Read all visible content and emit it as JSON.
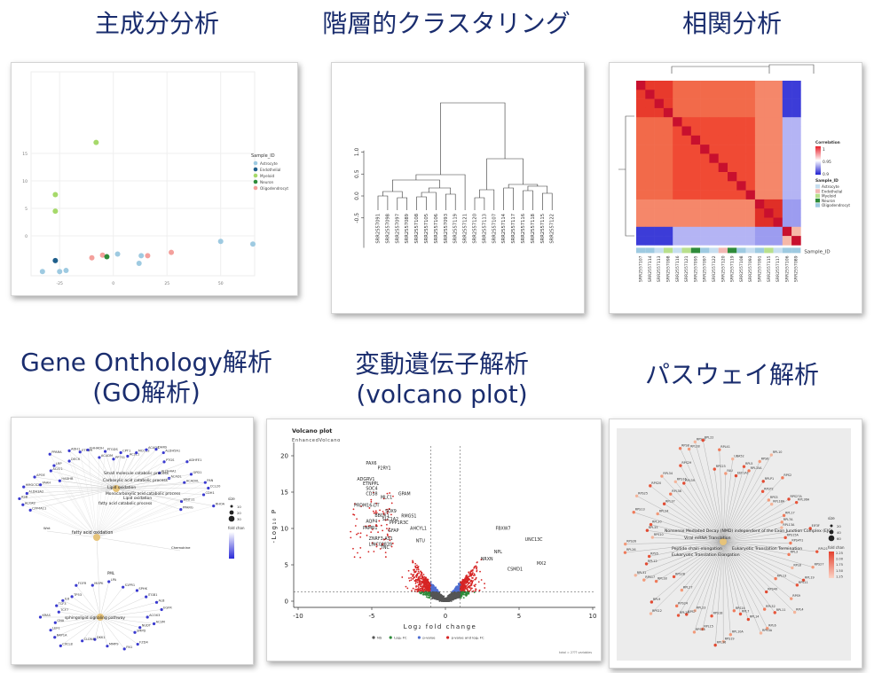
{
  "titles": {
    "pca": "主成分分析",
    "hclust": "階層的クラスタリング",
    "corr": "相関分析",
    "go_line1": "Gene Onthology解析",
    "go_line2": "(GO解析)",
    "volcano_line1": "変動遺伝子解析",
    "volcano_line2": "(volcano plot)",
    "pathway": "パスウェイ解析"
  },
  "pca": {
    "legend_title": "Sample_ID",
    "legend": [
      {
        "label": "Astrocyte",
        "color": "#9ecae1"
      },
      {
        "label": "Endothelial",
        "color": "#1f5f8b"
      },
      {
        "label": "Myeloid",
        "color": "#a6d96a"
      },
      {
        "label": "Neuron",
        "color": "#2e8b3a"
      },
      {
        "label": "Oligodendrocyt",
        "color": "#f4a09c"
      }
    ],
    "yticks": [
      "15",
      "10",
      "5",
      "0"
    ],
    "xticks": [
      "-25",
      "0",
      "25",
      "50"
    ],
    "points": [
      {
        "pc1": -8,
        "pc2": 17,
        "group": 2
      },
      {
        "pc1": -27,
        "pc2": 7.5,
        "group": 2
      },
      {
        "pc1": -27,
        "pc2": 4.5,
        "group": 2
      },
      {
        "pc1": -27,
        "pc2": -4.5,
        "group": 1
      },
      {
        "pc1": -33,
        "pc2": -6.5,
        "group": 0
      },
      {
        "pc1": -25,
        "pc2": -6.5,
        "group": 0
      },
      {
        "pc1": -22,
        "pc2": -6.3,
        "group": 0
      },
      {
        "pc1": -10,
        "pc2": -4,
        "group": 4
      },
      {
        "pc1": -5,
        "pc2": -3.5,
        "group": 4
      },
      {
        "pc1": -3,
        "pc2": -3.8,
        "group": 3
      },
      {
        "pc1": 2,
        "pc2": -3.3,
        "group": 0
      },
      {
        "pc1": 13,
        "pc2": -3.6,
        "group": 0
      },
      {
        "pc1": 16,
        "pc2": -3.6,
        "group": 4
      },
      {
        "pc1": 27,
        "pc2": -3,
        "group": 4
      },
      {
        "pc1": 12,
        "pc2": -5,
        "group": 0
      },
      {
        "pc1": 50,
        "pc2": -1,
        "group": 0
      },
      {
        "pc1": 65,
        "pc2": -1.5,
        "group": 0
      }
    ]
  },
  "hclust": {
    "yticks": [
      "1.0",
      "0.5",
      "0.0",
      "-0.5"
    ],
    "labels": [
      "SRR2557091",
      "SRR2557098",
      "SRR2557097",
      "SRR2557089",
      "SRR2557108",
      "SRR2557105",
      "SRR2557106",
      "SRR2557093",
      "SRR2557119",
      "SRR2557121",
      "SRR2557120",
      "SRR2557113",
      "SRR2557107",
      "SRR2557114",
      "SRR2557117",
      "SRR2557116",
      "SRR2557118",
      "SRR2557115",
      "SRR2557122"
    ]
  },
  "corr": {
    "legend_title": "Correlation",
    "legend_ticks": [
      "1",
      "0.95",
      "0.9"
    ],
    "sample_title": "Sample_ID",
    "sample_legend": [
      {
        "label": "Astrocyte",
        "color": "#c7dff0"
      },
      {
        "label": "Endothelial",
        "color": "#f2b8b4"
      },
      {
        "label": "Myeloid",
        "color": "#b8e08c"
      },
      {
        "label": "Neuron",
        "color": "#2e8b3a"
      },
      {
        "label": "Oligodendrocyt",
        "color": "#9ecae1"
      }
    ],
    "bottom_label": "Sample_ID",
    "col_labels": [
      "SRR2557107",
      "SRR2557114",
      "SRR2557113",
      "SRR2557098",
      "SRR2557116",
      "SRR2557121",
      "SRR2557095",
      "SRR2557097",
      "SRR2557122",
      "SRR2557120",
      "SRR2557119",
      "SRR2557108",
      "SRR2557093",
      "SRR2557091",
      "SRR2557115",
      "SRR2557117",
      "SRR2557106",
      "SRR2557089"
    ]
  },
  "go": {
    "size_title": "size",
    "size_ticks": [
      "10",
      "20",
      "30"
    ],
    "fold_title": "fold chan",
    "hubs": [
      "Carboxylic acid catabolic process",
      "fatty acid oxidation",
      "Small molecule catabolic process",
      "Monocarboxylic acid catabolic process",
      "Lipid oxidation",
      "fatty acid catabolic process",
      "PML",
      "Wnt",
      "sphingolipid signaling pathway",
      "Chemokine"
    ],
    "genes": [
      "CYP4A11",
      "ACOX2",
      "ASB",
      "ALDH3A2",
      "HMGCS2",
      "FAAH",
      "APOE",
      "HADHB",
      "ACAT1",
      "LRP",
      "PPARA",
      "DECR",
      "ADH1",
      "ETFDH",
      "EHHADH",
      "ACADM",
      "PTGDS",
      "PPTS1",
      "CPT1",
      "ACSL1",
      "MCCC2",
      "ACADS",
      "DHRS",
      "ALDH5A1",
      "PTGS",
      "ALDH4A1",
      "ADHFE1",
      "ACADL",
      "GPD1",
      "ACADVL",
      "PAN",
      "CCL20",
      "CDH1",
      "WNT11",
      "RHOA",
      "PPARG",
      "ACOX3",
      "ACSM",
      "NUDT",
      "SMPD",
      "FZD4",
      "FN1",
      "MMP9",
      "DKK1",
      "CLDN5",
      "CXCL8",
      "RAP1A",
      "LEF1",
      "GNA",
      "KRAS",
      "TCF7",
      "TCF3",
      "IL6",
      "TP53",
      "FGFR",
      "MAPK",
      "LPA",
      "S1PR1",
      "SPHK",
      "ITGB1",
      "ALB",
      "EGFR"
    ]
  },
  "volcano": {
    "title": "Volcano plot",
    "subtitle": "EnhancedVolcano",
    "xlabel": "Log₂ fold change",
    "ylabel": "-Log₁₀ P",
    "xticks": [
      "-10",
      "-5",
      "0",
      "5",
      "10"
    ],
    "yticks": [
      "0",
      "5",
      "10",
      "15",
      "20"
    ],
    "legend": [
      {
        "label": "NS",
        "color": "#555555"
      },
      {
        "label": "Log₂ FC",
        "color": "#2e8b3a"
      },
      {
        "label": "p-value",
        "color": "#4f6ed1"
      },
      {
        "label": "p-value and log₂ FC",
        "color": "#d62424"
      }
    ],
    "caption": "total = 2??? variables",
    "labels": [
      {
        "t": "PAX6",
        "x": -5.4,
        "y": 18.8
      },
      {
        "t": "P2RY1",
        "x": -4.6,
        "y": 18.1
      },
      {
        "t": "ADGRV1",
        "x": -6.0,
        "y": 16.6
      },
      {
        "t": "ETNPPL",
        "x": -5.6,
        "y": 16.0
      },
      {
        "t": "SOC4",
        "x": -5.4,
        "y": 15.3
      },
      {
        "t": "CD38",
        "x": -5.4,
        "y": 14.6
      },
      {
        "t": "GPAM",
        "x": -3.2,
        "y": 14.6
      },
      {
        "t": "MLC1",
        "x": -4.4,
        "y": 14.1
      },
      {
        "t": "PRDM16-DT",
        "x": -6.2,
        "y": 13.0
      },
      {
        "t": "SOX9",
        "x": -4.1,
        "y": 12.2
      },
      {
        "t": "BBOX1",
        "x": -4.8,
        "y": 11.6
      },
      {
        "t": "SLC1A2",
        "x": -4.3,
        "y": 11.1
      },
      {
        "t": "AQP4",
        "x": -5.4,
        "y": 10.8
      },
      {
        "t": "RMGS1",
        "x": -3.0,
        "y": 11.5
      },
      {
        "t": "PPP1R3C",
        "x": -3.8,
        "y": 10.6
      },
      {
        "t": "PAMR1",
        "x": -5.6,
        "y": 9.9
      },
      {
        "t": "GFAP",
        "x": -3.9,
        "y": 9.5
      },
      {
        "t": "AHCYL1",
        "x": -2.4,
        "y": 9.8
      },
      {
        "t": "NTU",
        "x": -2.0,
        "y": 8.1
      },
      {
        "t": "ZNRF3-AS1",
        "x": -5.2,
        "y": 8.4
      },
      {
        "t": "TNC",
        "x": -4.4,
        "y": 7.2
      },
      {
        "t": "LINC00839",
        "x": -5.2,
        "y": 7.6
      },
      {
        "t": "FBXW7",
        "x": 3.4,
        "y": 9.8
      },
      {
        "t": "UNC13C",
        "x": 5.4,
        "y": 8.3
      },
      {
        "t": "NPL",
        "x": 3.3,
        "y": 6.6
      },
      {
        "t": "NRXN",
        "x": 2.4,
        "y": 5.6
      },
      {
        "t": "MX2",
        "x": 6.2,
        "y": 5.0
      },
      {
        "t": "CSMD1",
        "x": 4.2,
        "y": 4.2
      }
    ]
  },
  "pathway": {
    "hubs": [
      "Nonsense Mediated Decay (NMD) independent of the Exon Junction Complex (EJC)",
      "Viral mRNA Translation",
      "Peptide chain elongation",
      "Eukaryotic Translation Termination",
      "Eukaryotic Translation Elongation"
    ],
    "size_title": "size",
    "size_ticks": [
      "20",
      "40",
      "60"
    ],
    "fold_title": "fold chan",
    "fold_ticks": [
      "2.25",
      "2.00",
      "1.75",
      "1.50",
      "1.25"
    ],
    "genes": [
      "RPL21",
      "RPL3",
      "RPS27",
      "RPL8",
      "RPL19",
      "RPS11",
      "RPL13",
      "RPS9",
      "RPL4",
      "RPS4X",
      "RPL11",
      "RPL32",
      "RPL6",
      "RPS3A",
      "RPL14",
      "RPL7",
      "RPS14",
      "RPL10A",
      "RPS19",
      "RPL36",
      "RPS18",
      "RPL15",
      "RPS15",
      "RPL23",
      "RPS7",
      "RPL29",
      "RPS24",
      "RPL27",
      "RPS12",
      "RPL9",
      "RPS28",
      "RPL18",
      "RPS17",
      "RPL31",
      "RPL12",
      "RPS5",
      "RPL26",
      "RPS26",
      "RPS10",
      "RPL35",
      "RPL30",
      "RPS13",
      "RPL24",
      "RPS25",
      "RPL37",
      "RPS20",
      "RPL38",
      "RPL34",
      "RPS16",
      "RPL39",
      "RPS29",
      "RPS8",
      "RPL28",
      "RPS21",
      "RPL22",
      "RPS23",
      "RPL41",
      "FAU",
      "UBA52",
      "EEF1A1",
      "RPL5",
      "RPL35A",
      "RPS6",
      "RPL10",
      "RPLP1",
      "RPLP2",
      "RPS2",
      "RPS3",
      "RPL18A",
      "RPS27A",
      "RPL36A",
      "RPL17",
      "RPL7A",
      "RPL13A",
      "EIF3F",
      "RPS15A",
      "RPS4Y1"
    ]
  }
}
